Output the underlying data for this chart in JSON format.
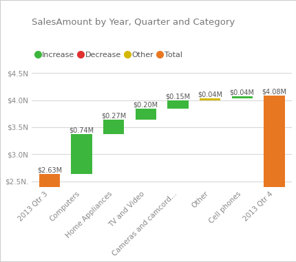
{
  "title": "SalesAmount by Year, Quarter and Category",
  "categories": [
    "2013 Qtr 3",
    "Computers",
    "Home Appliances",
    "TV and Video",
    "Cameras and camcord...",
    "Other",
    "Cell phones",
    "2013 Qtr 4"
  ],
  "values": [
    2.63,
    0.74,
    0.27,
    0.2,
    0.15,
    0.04,
    0.04,
    4.08
  ],
  "bar_types": [
    "total",
    "increase",
    "increase",
    "increase",
    "increase",
    "other",
    "increase",
    "total"
  ],
  "labels": [
    "$2.63M",
    "$0.74M",
    "$0.27M",
    "$0.20M",
    "$0.15M",
    "$0.04M",
    "$0.04M",
    "$4.08M"
  ],
  "colors": {
    "increase": "#3cb63c",
    "decrease": "#e03030",
    "other": "#d4b800",
    "total": "#e87722"
  },
  "legend_items": [
    {
      "label": "Increase",
      "color": "#3cb63c"
    },
    {
      "label": "Decrease",
      "color": "#e03030"
    },
    {
      "label": "Other",
      "color": "#d4b800"
    },
    {
      "label": "Total",
      "color": "#e87722"
    }
  ],
  "ylim": [
    2.4,
    4.65
  ],
  "yticks": [
    2.5,
    3.0,
    3.5,
    4.0,
    4.5
  ],
  "ytick_labels": [
    "$2.5N.",
    "$3.0N",
    "$3.5N",
    "$4.0N",
    "$4.5N"
  ],
  "background_color": "#ffffff",
  "grid_color": "#d8d8d8",
  "title_fontsize": 9.5,
  "label_fontsize": 7,
  "tick_fontsize": 7.5,
  "border_color": "#cccccc"
}
